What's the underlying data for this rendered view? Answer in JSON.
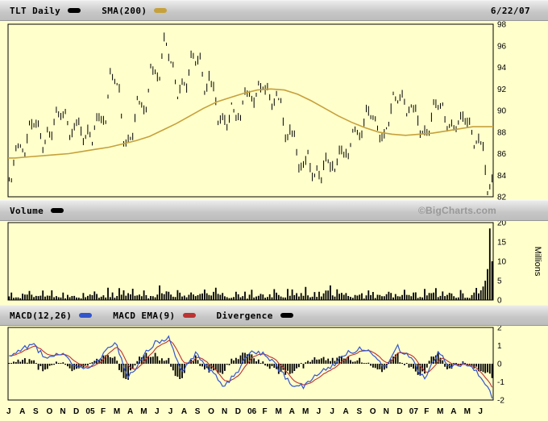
{
  "page": {
    "background": "#FFFFCC"
  },
  "colors": {
    "price": "#000000",
    "sma": "#C6A13B",
    "volume": "#000000",
    "macd": "#3355CC",
    "signal": "#BB3333",
    "divergence": "#000000",
    "legend_bg": "#C8C8C8",
    "watermark": "#999999",
    "plot_bg": "#FFFFCC"
  },
  "header": {
    "symbol_label": "TLT Daily",
    "sma_label": "SMA(200)",
    "date": "6/22/07"
  },
  "volume_header": {
    "label": "Volume",
    "watermark": "©BigCharts.com"
  },
  "macd_header": {
    "macd_label": "MACD(12,26)",
    "ema_label": "MACD EMA(9)",
    "divergence_label": "Divergence"
  },
  "chart_data": [
    {
      "type": "line",
      "title": "TLT Daily price (OHLC bars) with SMA(200) overlay, Jul 2004 - 6/22/07",
      "x_months": [
        "J",
        "A",
        "S",
        "O",
        "N",
        "D",
        "05",
        "F",
        "M",
        "A",
        "M",
        "J",
        "J",
        "A",
        "S",
        "O",
        "N",
        "D",
        "06",
        "F",
        "M",
        "A",
        "M",
        "J",
        "J",
        "A",
        "S",
        "O",
        "N",
        "D",
        "07",
        "F",
        "M",
        "A",
        "M",
        "J"
      ],
      "ylim": [
        82,
        98
      ],
      "yticks": [
        98,
        96,
        94,
        92,
        90,
        88,
        86,
        84,
        82
      ],
      "series": [
        {
          "name": "TLT price",
          "style": "ohlc-bars",
          "color_key": "price",
          "start_value": 83.5,
          "monthly_close": [
            86.5,
            88.5,
            88.0,
            89.5,
            88.5,
            88.0,
            89.0,
            92.5,
            87.5,
            90.5,
            93.5,
            95.0,
            92.5,
            94.5,
            93.0,
            89.5,
            89.5,
            91.5,
            92.0,
            91.5,
            88.0,
            85.0,
            84.5,
            85.0,
            86.0,
            88.0,
            89.5,
            88.0,
            91.0,
            90.5,
            88.0,
            90.5,
            89.0,
            89.0,
            87.5,
            83.5
          ],
          "monthly_high": [
            86.8,
            89.2,
            89.0,
            90.2,
            90.0,
            89.2,
            89.6,
            93.8,
            92.4,
            91.2,
            94.2,
            97.2,
            94.4,
            95.4,
            95.2,
            92.6,
            90.6,
            92.0,
            92.6,
            92.4,
            91.0,
            88.0,
            86.2,
            86.0,
            86.6,
            88.4,
            90.4,
            89.4,
            91.6,
            91.9,
            90.4,
            90.9,
            90.6,
            89.8,
            89.2,
            87.0
          ],
          "monthly_low": [
            83.2,
            85.8,
            86.2,
            87.4,
            87.2,
            86.8,
            86.9,
            88.6,
            86.8,
            87.4,
            89.8,
            92.6,
            91.2,
            91.8,
            91.6,
            88.8,
            88.3,
            89.2,
            90.4,
            90.2,
            87.2,
            84.4,
            83.6,
            83.4,
            84.2,
            85.6,
            87.4,
            87.2,
            88.4,
            89.6,
            87.6,
            87.8,
            88.2,
            87.9,
            86.6,
            82.3
          ]
        },
        {
          "name": "SMA(200)",
          "style": "line",
          "color_key": "sma",
          "monthly_values": [
            85.6,
            85.7,
            85.8,
            85.9,
            86.0,
            86.2,
            86.4,
            86.6,
            86.9,
            87.2,
            87.6,
            88.2,
            88.8,
            89.5,
            90.2,
            90.8,
            91.2,
            91.6,
            91.9,
            92.0,
            91.9,
            91.5,
            90.9,
            90.2,
            89.5,
            88.9,
            88.4,
            88.0,
            87.8,
            87.7,
            87.8,
            87.9,
            88.1,
            88.3,
            88.5,
            88.5
          ]
        }
      ]
    },
    {
      "type": "bar",
      "title": "Volume",
      "ylabel": "Millions",
      "ylim": [
        0,
        20
      ],
      "yticks": [
        20,
        15,
        10,
        5,
        0
      ],
      "monthly_avg": [
        1.0,
        1.2,
        1.1,
        1.3,
        1.2,
        1.0,
        1.2,
        1.5,
        1.8,
        1.4,
        1.3,
        1.8,
        1.5,
        1.3,
        1.4,
        1.5,
        1.2,
        1.1,
        1.3,
        1.4,
        1.5,
        1.4,
        1.6,
        1.8,
        1.4,
        1.2,
        1.3,
        1.2,
        1.4,
        1.3,
        1.5,
        1.6,
        1.4,
        1.3,
        1.6,
        4.0
      ],
      "monthly_max": [
        2.2,
        2.8,
        2.5,
        3.0,
        2.6,
        2.2,
        2.8,
        3.5,
        4.2,
        3.0,
        2.8,
        5.2,
        3.2,
        2.6,
        3.0,
        3.4,
        2.5,
        2.3,
        2.8,
        3.0,
        3.2,
        3.0,
        3.6,
        4.2,
        3.0,
        2.5,
        2.8,
        2.6,
        3.0,
        2.8,
        3.2,
        3.4,
        3.0,
        2.8,
        3.8,
        18.5
      ],
      "final_spike_bars": [
        2.5,
        3.5,
        5,
        8,
        18.5,
        10
      ]
    },
    {
      "type": "line",
      "title": "MACD(12,26) with MACD EMA(9) line and Divergence histogram",
      "ylim": [
        -2,
        2
      ],
      "yticks": [
        2,
        1,
        0,
        -1,
        -2
      ],
      "series": [
        {
          "name": "MACD(12,26)",
          "style": "line",
          "color_key": "macd",
          "monthly_values": [
            0.8,
            1.0,
            0.2,
            0.6,
            -0.2,
            -0.3,
            0.3,
            1.3,
            -0.8,
            0.3,
            1.2,
            1.4,
            -0.5,
            0.6,
            -0.3,
            -1.2,
            -0.6,
            0.7,
            0.5,
            -0.1,
            -1.1,
            -1.3,
            -0.6,
            -0.2,
            0.5,
            0.8,
            0.7,
            -0.2,
            0.9,
            0.3,
            -0.9,
            0.6,
            -0.2,
            0.1,
            -0.6,
            -1.8
          ]
        },
        {
          "name": "MACD EMA(9)",
          "style": "line",
          "color_key": "signal",
          "derived": "ema9_of_macd"
        },
        {
          "name": "Divergence",
          "style": "bars",
          "color_key": "divergence",
          "derived": "macd_minus_ema9"
        }
      ]
    }
  ]
}
